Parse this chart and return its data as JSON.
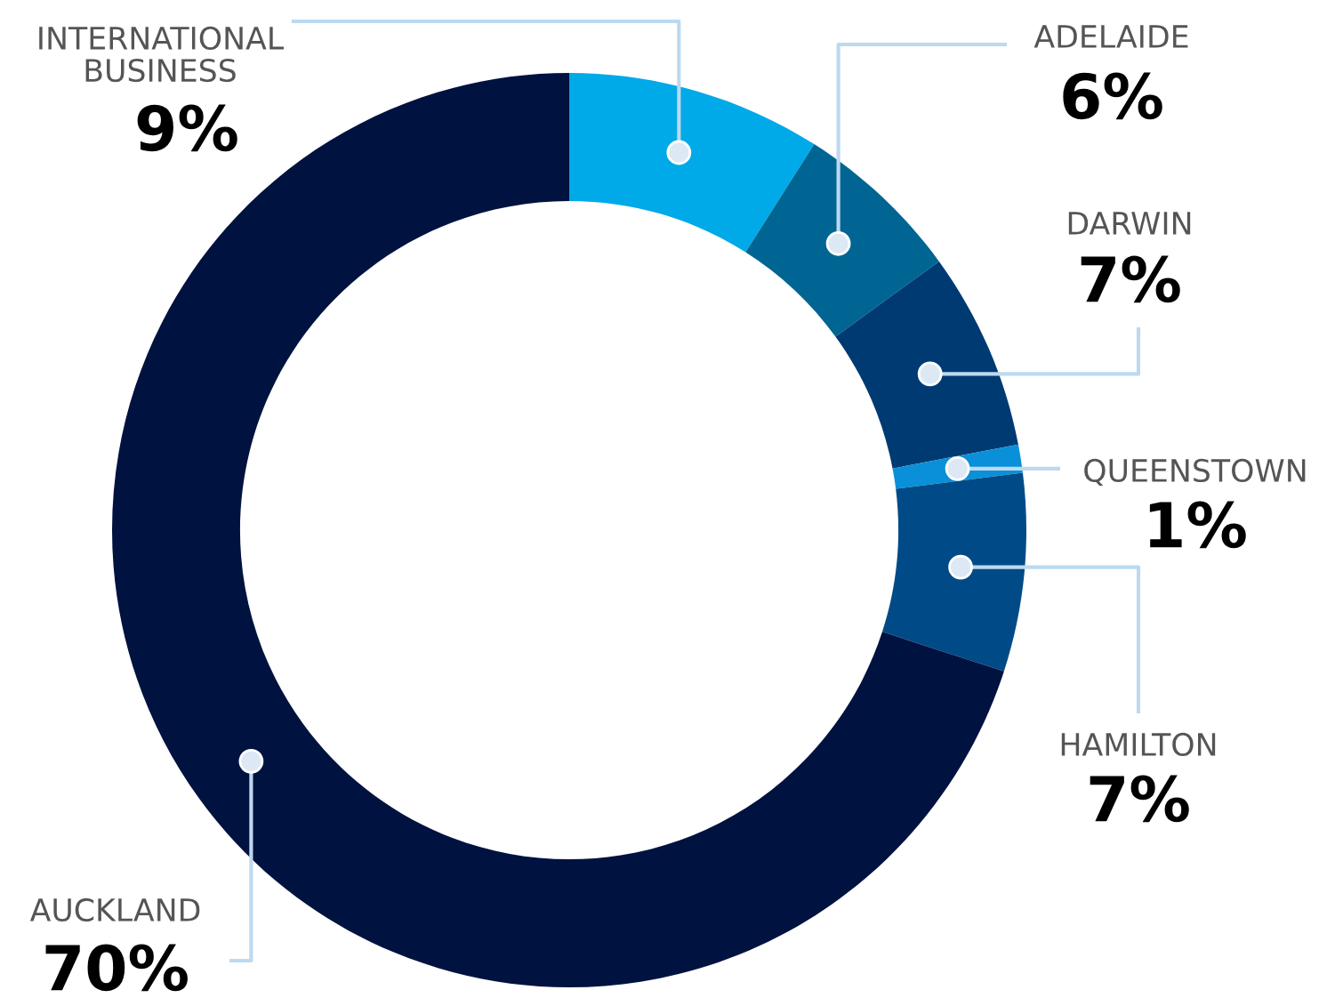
{
  "chart_data": {
    "type": "donut",
    "categories": [
      "INTERNATIONAL\nBUSINESS",
      "ADELAIDE",
      "DARWIN",
      "QUEENSTOWN",
      "HAMILTON",
      "AUCKLAND"
    ],
    "values": [
      9,
      6,
      7,
      1,
      7,
      70
    ],
    "colors": [
      "#00a9e8",
      "#006593",
      "#003a73",
      "#0a90d8",
      "#004b87",
      "#00123f"
    ],
    "value_labels": [
      "9%",
      "6%",
      "7%",
      "1%",
      "7%",
      "70%"
    ]
  }
}
